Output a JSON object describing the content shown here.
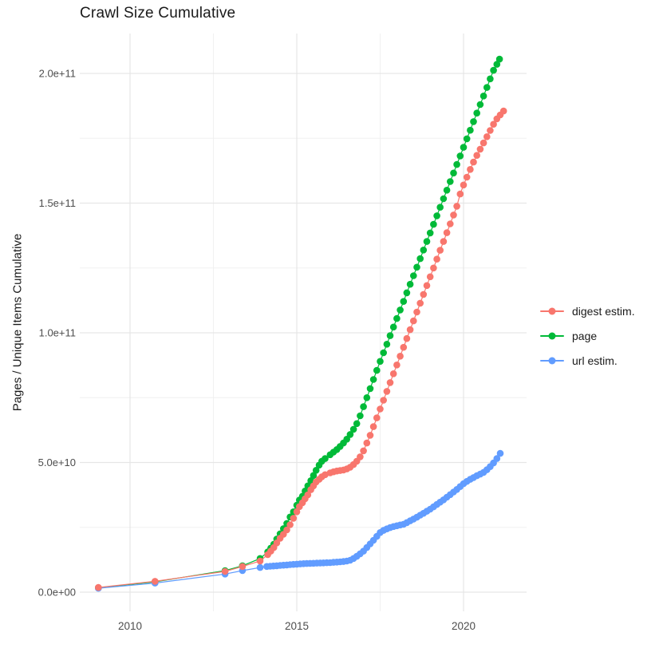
{
  "title": "Crawl Size Cumulative",
  "y_axis": {
    "label": "Pages / Unique Items Cumulative",
    "ticks": [
      "0.0e+00",
      "5.0e+10",
      "1.0e+11",
      "1.5e+11",
      "2.0e+11"
    ],
    "tick_values_e9": [
      0,
      50,
      100,
      150,
      200
    ]
  },
  "x_axis": {
    "ticks": [
      "2010",
      "2015",
      "2020"
    ],
    "tick_values": [
      2010,
      2015,
      2020
    ]
  },
  "legend": {
    "items": [
      {
        "label": "digest estim.",
        "color": "#F8766D"
      },
      {
        "label": "page",
        "color": "#00BA38"
      },
      {
        "label": "url estim.",
        "color": "#619CFF"
      }
    ]
  },
  "chart_data": {
    "type": "scatter",
    "title": "Crawl Size Cumulative",
    "xlabel": "",
    "ylabel": "Pages / Unique Items Cumulative",
    "value_unit": "1e9 pages (billions)",
    "x_range": [
      2008.5,
      2021.9
    ],
    "y_range_e9": [
      -7,
      215
    ],
    "x_major": [
      2010,
      2015,
      2020
    ],
    "x_minor": [
      2012.5,
      2017.5
    ],
    "y_major_e9": [
      0,
      50,
      100,
      150,
      200
    ],
    "y_minor_e9": [
      25,
      75,
      125,
      175
    ],
    "grid": true,
    "legend_position": "right",
    "draw_order": [
      1,
      2,
      0
    ],
    "series": [
      {
        "name": "digest estim.",
        "color": "#F8766D",
        "points": [
          [
            2009.05,
            1.8
          ],
          [
            2010.75,
            4.2
          ],
          [
            2012.85,
            8.0
          ],
          [
            2013.37,
            9.9
          ],
          [
            2013.9,
            12.0
          ],
          [
            2014.13,
            14.5
          ],
          [
            2014.22,
            15.8
          ],
          [
            2014.31,
            17.2
          ],
          [
            2014.4,
            19.0
          ],
          [
            2014.5,
            20.8
          ],
          [
            2014.6,
            22.3
          ],
          [
            2014.7,
            24.0
          ],
          [
            2014.8,
            26.0
          ],
          [
            2014.9,
            28.5
          ],
          [
            2015.0,
            31.0
          ],
          [
            2015.08,
            33.0
          ],
          [
            2015.17,
            34.5
          ],
          [
            2015.25,
            36.0
          ],
          [
            2015.33,
            37.5
          ],
          [
            2015.42,
            39.5
          ],
          [
            2015.5,
            41.0
          ],
          [
            2015.58,
            42.5
          ],
          [
            2015.67,
            43.5
          ],
          [
            2015.75,
            44.5
          ],
          [
            2015.85,
            45.3
          ],
          [
            2016.0,
            46.0
          ],
          [
            2016.1,
            46.4
          ],
          [
            2016.2,
            46.7
          ],
          [
            2016.3,
            46.9
          ],
          [
            2016.4,
            47.1
          ],
          [
            2016.5,
            47.5
          ],
          [
            2016.6,
            48.2
          ],
          [
            2016.7,
            49.2
          ],
          [
            2016.8,
            50.5
          ],
          [
            2016.9,
            52.2
          ],
          [
            2017.0,
            54.5
          ],
          [
            2017.1,
            57.5
          ],
          [
            2017.2,
            60.5
          ],
          [
            2017.3,
            63.8
          ],
          [
            2017.4,
            67.2
          ],
          [
            2017.5,
            70.6
          ],
          [
            2017.6,
            74.0
          ],
          [
            2017.7,
            77.4
          ],
          [
            2017.8,
            80.8
          ],
          [
            2017.9,
            84.2
          ],
          [
            2018.0,
            87.6
          ],
          [
            2018.1,
            91.0
          ],
          [
            2018.2,
            94.4
          ],
          [
            2018.3,
            97.8
          ],
          [
            2018.4,
            101.2
          ],
          [
            2018.5,
            104.6
          ],
          [
            2018.6,
            108.0
          ],
          [
            2018.7,
            111.4
          ],
          [
            2018.8,
            114.8
          ],
          [
            2018.9,
            118.2
          ],
          [
            2019.0,
            121.6
          ],
          [
            2019.1,
            125.0
          ],
          [
            2019.2,
            128.4
          ],
          [
            2019.3,
            131.8
          ],
          [
            2019.4,
            135.2
          ],
          [
            2019.5,
            138.6
          ],
          [
            2019.6,
            142.0
          ],
          [
            2019.7,
            145.4
          ],
          [
            2019.8,
            148.8
          ],
          [
            2019.9,
            153.5
          ],
          [
            2020.0,
            157.0
          ],
          [
            2020.1,
            160.0
          ],
          [
            2020.2,
            163.0
          ],
          [
            2020.3,
            165.8
          ],
          [
            2020.4,
            168.4
          ],
          [
            2020.5,
            170.8
          ],
          [
            2020.6,
            173.2
          ],
          [
            2020.7,
            175.6
          ],
          [
            2020.8,
            178.0
          ],
          [
            2020.9,
            180.4
          ],
          [
            2021.0,
            182.5
          ],
          [
            2021.1,
            184.0
          ],
          [
            2021.2,
            185.5
          ]
        ]
      },
      {
        "name": "page",
        "color": "#00BA38",
        "points": [
          [
            2009.05,
            1.7
          ],
          [
            2010.75,
            4.0
          ],
          [
            2012.85,
            8.3
          ],
          [
            2013.37,
            10.2
          ],
          [
            2013.9,
            13.0
          ],
          [
            2014.13,
            15.5
          ],
          [
            2014.22,
            17.0
          ],
          [
            2014.31,
            18.5
          ],
          [
            2014.4,
            20.5
          ],
          [
            2014.5,
            22.5
          ],
          [
            2014.6,
            24.5
          ],
          [
            2014.7,
            26.5
          ],
          [
            2014.8,
            29.0
          ],
          [
            2014.9,
            31.0
          ],
          [
            2015.0,
            33.5
          ],
          [
            2015.08,
            35.5
          ],
          [
            2015.17,
            37.0
          ],
          [
            2015.25,
            39.0
          ],
          [
            2015.33,
            41.0
          ],
          [
            2015.42,
            43.0
          ],
          [
            2015.5,
            45.0
          ],
          [
            2015.58,
            47.0
          ],
          [
            2015.67,
            49.0
          ],
          [
            2015.75,
            50.5
          ],
          [
            2015.85,
            51.5
          ],
          [
            2016.0,
            53.0
          ],
          [
            2016.1,
            54.0
          ],
          [
            2016.2,
            55.0
          ],
          [
            2016.3,
            56.2
          ],
          [
            2016.4,
            57.5
          ],
          [
            2016.5,
            59.0
          ],
          [
            2016.6,
            60.8
          ],
          [
            2016.7,
            62.8
          ],
          [
            2016.8,
            65.0
          ],
          [
            2016.9,
            68.0
          ],
          [
            2017.0,
            71.5
          ],
          [
            2017.1,
            75.0
          ],
          [
            2017.2,
            78.5
          ],
          [
            2017.3,
            82.0
          ],
          [
            2017.4,
            85.5
          ],
          [
            2017.5,
            89.0
          ],
          [
            2017.6,
            92.3
          ],
          [
            2017.7,
            95.6
          ],
          [
            2017.8,
            98.9
          ],
          [
            2017.9,
            102.2
          ],
          [
            2018.0,
            105.5
          ],
          [
            2018.1,
            108.8
          ],
          [
            2018.2,
            112.1
          ],
          [
            2018.3,
            115.4
          ],
          [
            2018.4,
            118.7
          ],
          [
            2018.5,
            122.0
          ],
          [
            2018.6,
            125.3
          ],
          [
            2018.7,
            128.6
          ],
          [
            2018.8,
            131.9
          ],
          [
            2018.9,
            135.2
          ],
          [
            2019.0,
            138.5
          ],
          [
            2019.1,
            141.8
          ],
          [
            2019.2,
            145.1
          ],
          [
            2019.3,
            148.4
          ],
          [
            2019.4,
            151.7
          ],
          [
            2019.5,
            155.0
          ],
          [
            2019.6,
            158.3
          ],
          [
            2019.7,
            161.6
          ],
          [
            2019.8,
            164.9
          ],
          [
            2019.9,
            168.2
          ],
          [
            2020.0,
            171.5
          ],
          [
            2020.1,
            174.8
          ],
          [
            2020.2,
            178.1
          ],
          [
            2020.3,
            181.4
          ],
          [
            2020.4,
            184.7
          ],
          [
            2020.5,
            188.0
          ],
          [
            2020.6,
            191.3
          ],
          [
            2020.7,
            194.6
          ],
          [
            2020.8,
            197.9
          ],
          [
            2020.9,
            201.2
          ],
          [
            2021.0,
            203.5
          ],
          [
            2021.08,
            205.5
          ]
        ]
      },
      {
        "name": "url estim.",
        "color": "#619CFF",
        "points": [
          [
            2009.05,
            1.5
          ],
          [
            2010.75,
            3.5
          ],
          [
            2012.85,
            7.0
          ],
          [
            2013.37,
            8.3
          ],
          [
            2013.9,
            9.5
          ],
          [
            2014.1,
            9.9
          ],
          [
            2014.2,
            10.0
          ],
          [
            2014.3,
            10.1
          ],
          [
            2014.4,
            10.2
          ],
          [
            2014.5,
            10.3
          ],
          [
            2014.6,
            10.4
          ],
          [
            2014.7,
            10.5
          ],
          [
            2014.8,
            10.6
          ],
          [
            2014.9,
            10.7
          ],
          [
            2015.0,
            10.8
          ],
          [
            2015.1,
            10.9
          ],
          [
            2015.2,
            11.0
          ],
          [
            2015.3,
            11.05
          ],
          [
            2015.4,
            11.1
          ],
          [
            2015.5,
            11.15
          ],
          [
            2015.6,
            11.2
          ],
          [
            2015.7,
            11.25
          ],
          [
            2015.8,
            11.3
          ],
          [
            2015.9,
            11.35
          ],
          [
            2016.0,
            11.4
          ],
          [
            2016.1,
            11.5
          ],
          [
            2016.2,
            11.6
          ],
          [
            2016.3,
            11.7
          ],
          [
            2016.4,
            11.8
          ],
          [
            2016.5,
            12.0
          ],
          [
            2016.6,
            12.3
          ],
          [
            2016.7,
            13.0
          ],
          [
            2016.8,
            13.8
          ],
          [
            2016.9,
            14.8
          ],
          [
            2017.0,
            15.8
          ],
          [
            2017.1,
            17.2
          ],
          [
            2017.2,
            18.6
          ],
          [
            2017.3,
            20.0
          ],
          [
            2017.4,
            21.5
          ],
          [
            2017.5,
            23.0
          ],
          [
            2017.6,
            23.8
          ],
          [
            2017.7,
            24.4
          ],
          [
            2017.8,
            24.9
          ],
          [
            2017.9,
            25.3
          ],
          [
            2018.0,
            25.6
          ],
          [
            2018.1,
            25.9
          ],
          [
            2018.2,
            26.2
          ],
          [
            2018.3,
            26.8
          ],
          [
            2018.4,
            27.5
          ],
          [
            2018.5,
            28.2
          ],
          [
            2018.6,
            28.9
          ],
          [
            2018.7,
            29.7
          ],
          [
            2018.8,
            30.4
          ],
          [
            2018.9,
            31.2
          ],
          [
            2019.0,
            32.0
          ],
          [
            2019.1,
            32.9
          ],
          [
            2019.2,
            33.8
          ],
          [
            2019.3,
            34.7
          ],
          [
            2019.4,
            35.6
          ],
          [
            2019.5,
            36.6
          ],
          [
            2019.6,
            37.6
          ],
          [
            2019.7,
            38.6
          ],
          [
            2019.8,
            39.6
          ],
          [
            2019.9,
            40.7
          ],
          [
            2020.0,
            41.8
          ],
          [
            2020.1,
            42.7
          ],
          [
            2020.2,
            43.5
          ],
          [
            2020.3,
            44.2
          ],
          [
            2020.4,
            44.9
          ],
          [
            2020.5,
            45.5
          ],
          [
            2020.6,
            46.2
          ],
          [
            2020.7,
            47.2
          ],
          [
            2020.8,
            48.4
          ],
          [
            2020.9,
            49.8
          ],
          [
            2021.0,
            51.5
          ],
          [
            2021.1,
            53.5
          ]
        ]
      }
    ]
  }
}
